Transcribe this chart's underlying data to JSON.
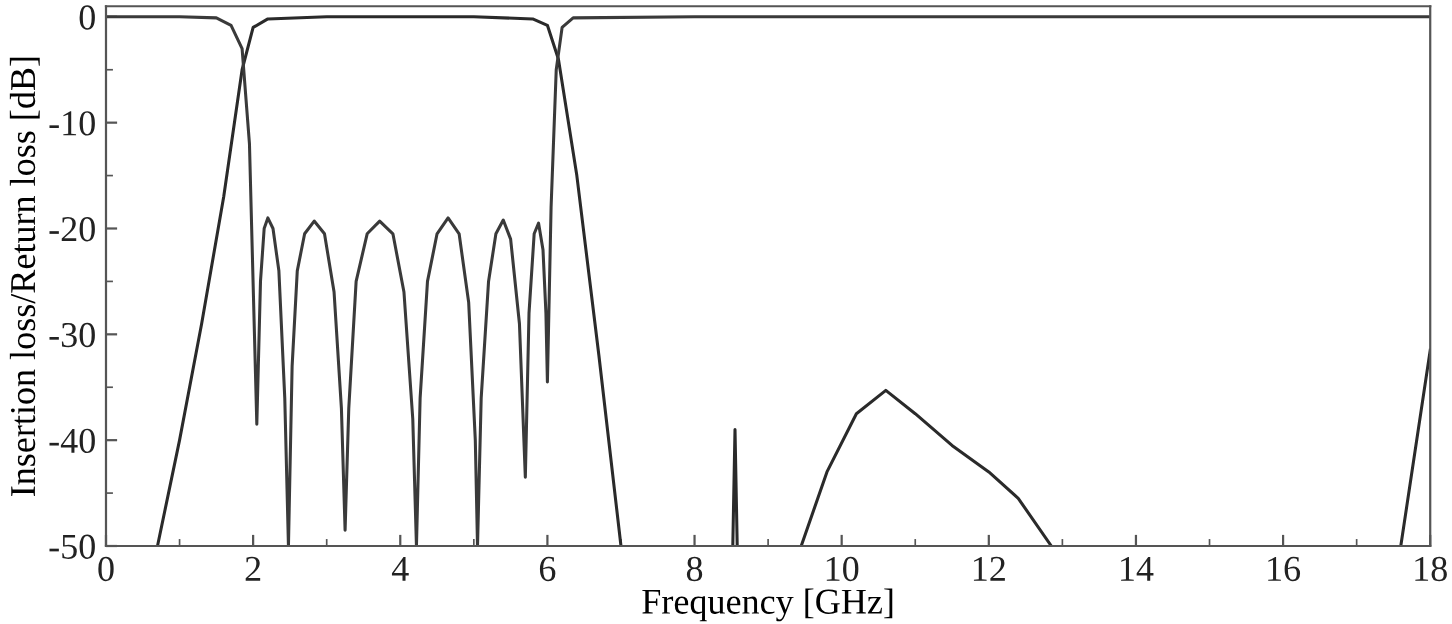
{
  "chart_data": {
    "type": "line",
    "xlabel": "Frequency [GHz]",
    "ylabel": "Insertion loss/Return loss [dB]",
    "xlim": [
      0,
      18
    ],
    "ylim": [
      -50,
      1
    ],
    "xticks": [
      0,
      2,
      4,
      6,
      8,
      10,
      12,
      14,
      16,
      18
    ],
    "yticks": [
      0,
      -10,
      -20,
      -30,
      -40,
      -50
    ],
    "grid": false,
    "marker": "none",
    "line_style": "solid",
    "series": [
      {
        "color": "#2a2a2a",
        "x": [
          0.7,
          1.0,
          1.3,
          1.6,
          1.85,
          2.0,
          2.2,
          3,
          4,
          5,
          5.8,
          6.0,
          6.15,
          6.4,
          6.7,
          7.0,
          7.5,
          8.52,
          8.55,
          8.58,
          9.0,
          9.45,
          9.8,
          10.2,
          10.6,
          11.0,
          11.5,
          12.0,
          12.4,
          12.85,
          15.0,
          17.6,
          18.0
        ],
        "values": [
          -50,
          -40,
          -29,
          -17,
          -5,
          -1,
          -0.2,
          0,
          0,
          0,
          -0.2,
          -0.8,
          -4,
          -15,
          -32,
          -50,
          null,
          -50,
          -39,
          -50,
          null,
          -50,
          -43,
          -37.5,
          -35.3,
          -37.5,
          -40.5,
          -43,
          -45.5,
          -50,
          null,
          -50,
          -31.5
        ]
      },
      {
        "color": "#3a3a3a",
        "x": [
          0,
          1.0,
          1.5,
          1.7,
          1.85,
          1.95,
          2.05,
          2.1,
          2.15,
          2.2,
          2.27,
          2.35,
          2.43,
          2.48,
          2.53,
          2.6,
          2.7,
          2.83,
          2.97,
          3.1,
          3.2,
          3.25,
          3.3,
          3.4,
          3.55,
          3.72,
          3.9,
          4.05,
          4.17,
          4.22,
          4.27,
          4.37,
          4.5,
          4.65,
          4.8,
          4.93,
          5.02,
          5.05,
          5.1,
          5.2,
          5.3,
          5.4,
          5.5,
          5.62,
          5.7,
          5.75,
          5.82,
          5.88,
          5.94,
          5.98,
          6.0,
          6.05,
          6.12,
          6.2,
          6.35,
          8,
          12,
          18
        ],
        "values": [
          0,
          0,
          -0.1,
          -0.8,
          -3,
          -12,
          -38.5,
          -25,
          -20,
          -19,
          -20,
          -24,
          -36,
          -50,
          -33,
          -24,
          -20.5,
          -19.3,
          -20.5,
          -26,
          -37,
          -48.5,
          -37,
          -25,
          -20.5,
          -19.3,
          -20.5,
          -26,
          -38,
          -50,
          -36,
          -25,
          -20.5,
          -19,
          -20.5,
          -27,
          -40,
          -50,
          -36,
          -25,
          -20.5,
          -19.2,
          -21,
          -29,
          -43.5,
          -28,
          -20.5,
          -19.5,
          -22,
          -28,
          -34.5,
          -18,
          -5,
          -1,
          -0.1,
          0,
          0,
          0
        ]
      }
    ]
  }
}
